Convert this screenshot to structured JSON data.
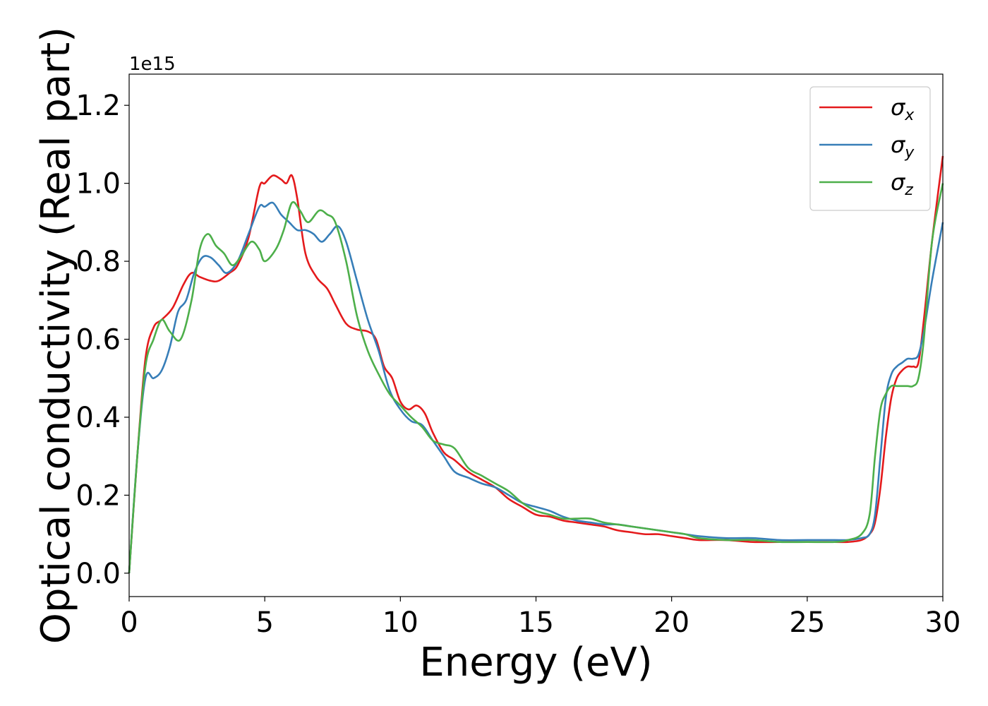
{
  "chart_data": {
    "type": "line",
    "xlabel": "Energy (eV)",
    "ylabel": "Optical conductivity (Real part)",
    "y_offset_label": "1e15",
    "xlim": [
      0,
      30
    ],
    "ylim": [
      -0.06,
      1.28
    ],
    "x_ticks": [
      0,
      5,
      10,
      15,
      20,
      25,
      30
    ],
    "x_tick_labels": [
      "0",
      "5",
      "10",
      "15",
      "20",
      "25",
      "30"
    ],
    "y_ticks": [
      0.0,
      0.2,
      0.4,
      0.6,
      0.8,
      1.0,
      1.2
    ],
    "y_tick_labels": [
      "0.0",
      "0.2",
      "0.4",
      "0.6",
      "0.8",
      "1.0",
      "1.2"
    ],
    "grid": false,
    "legend_position": "top-right",
    "series": [
      {
        "name": "σx",
        "symbol": "σ",
        "subscript": "x",
        "color": "#e41a1c",
        "x": [
          0,
          0.3,
          0.6,
          0.9,
          1.2,
          1.6,
          2.0,
          2.3,
          2.6,
          3.0,
          3.3,
          3.7,
          4.0,
          4.4,
          4.8,
          5.0,
          5.3,
          5.6,
          5.8,
          6.0,
          6.2,
          6.5,
          6.9,
          7.3,
          7.6,
          8.0,
          8.4,
          8.8,
          9.1,
          9.4,
          9.7,
          10.0,
          10.3,
          10.6,
          10.9,
          11.2,
          11.6,
          12.0,
          12.5,
          13.0,
          13.5,
          14.0,
          14.5,
          15.0,
          15.5,
          16.0,
          16.5,
          17.0,
          17.5,
          18.0,
          18.5,
          19.0,
          19.5,
          20.0,
          20.5,
          21.0,
          22.0,
          23.0,
          24.0,
          25.0,
          26.0,
          26.5,
          27.0,
          27.3,
          27.5,
          27.7,
          27.9,
          28.1,
          28.3,
          28.5,
          28.7,
          28.9,
          29.1,
          29.3,
          29.6,
          30.0
        ],
        "y": [
          0.0,
          0.3,
          0.55,
          0.63,
          0.65,
          0.68,
          0.74,
          0.77,
          0.76,
          0.75,
          0.75,
          0.77,
          0.79,
          0.86,
          0.99,
          1.0,
          1.02,
          1.01,
          1.0,
          1.02,
          0.96,
          0.82,
          0.76,
          0.73,
          0.69,
          0.64,
          0.625,
          0.62,
          0.6,
          0.53,
          0.5,
          0.44,
          0.42,
          0.43,
          0.41,
          0.36,
          0.31,
          0.29,
          0.26,
          0.24,
          0.22,
          0.19,
          0.17,
          0.15,
          0.145,
          0.135,
          0.13,
          0.125,
          0.12,
          0.11,
          0.105,
          0.1,
          0.1,
          0.095,
          0.09,
          0.085,
          0.085,
          0.08,
          0.08,
          0.08,
          0.08,
          0.08,
          0.085,
          0.1,
          0.13,
          0.22,
          0.35,
          0.45,
          0.5,
          0.52,
          0.53,
          0.53,
          0.54,
          0.65,
          0.85,
          1.07
        ]
      },
      {
        "name": "σy",
        "symbol": "σ",
        "subscript": "y",
        "color": "#377eb8",
        "x": [
          0,
          0.3,
          0.6,
          0.9,
          1.2,
          1.5,
          1.8,
          2.1,
          2.4,
          2.7,
          3.0,
          3.3,
          3.6,
          4.0,
          4.4,
          4.8,
          5.0,
          5.3,
          5.6,
          5.9,
          6.2,
          6.5,
          6.8,
          7.1,
          7.4,
          7.7,
          8.0,
          8.4,
          8.8,
          9.2,
          9.6,
          10.0,
          10.4,
          10.8,
          11.2,
          11.6,
          12.0,
          12.5,
          13.0,
          13.5,
          14.0,
          14.5,
          15.0,
          15.5,
          16.0,
          16.5,
          17.0,
          17.5,
          18.0,
          18.5,
          19.0,
          19.5,
          20.0,
          20.5,
          21.0,
          22.0,
          23.0,
          24.0,
          25.0,
          26.0,
          26.5,
          27.0,
          27.3,
          27.5,
          27.7,
          27.9,
          28.1,
          28.3,
          28.5,
          28.7,
          28.9,
          29.1,
          29.3,
          29.6,
          30.0
        ],
        "y": [
          0.0,
          0.3,
          0.5,
          0.5,
          0.52,
          0.58,
          0.67,
          0.7,
          0.77,
          0.81,
          0.81,
          0.79,
          0.77,
          0.8,
          0.87,
          0.94,
          0.94,
          0.95,
          0.92,
          0.9,
          0.88,
          0.88,
          0.87,
          0.85,
          0.87,
          0.89,
          0.85,
          0.75,
          0.65,
          0.57,
          0.47,
          0.42,
          0.39,
          0.38,
          0.34,
          0.3,
          0.26,
          0.245,
          0.23,
          0.22,
          0.2,
          0.18,
          0.17,
          0.16,
          0.145,
          0.135,
          0.13,
          0.125,
          0.125,
          0.12,
          0.115,
          0.11,
          0.105,
          0.1,
          0.095,
          0.09,
          0.09,
          0.085,
          0.085,
          0.085,
          0.085,
          0.09,
          0.1,
          0.15,
          0.3,
          0.45,
          0.51,
          0.53,
          0.54,
          0.55,
          0.55,
          0.56,
          0.62,
          0.75,
          0.9
        ]
      },
      {
        "name": "σz",
        "symbol": "σ",
        "subscript": "z",
        "color": "#4daf4a",
        "x": [
          0,
          0.3,
          0.6,
          0.9,
          1.2,
          1.5,
          1.9,
          2.3,
          2.6,
          2.9,
          3.2,
          3.5,
          3.8,
          4.1,
          4.5,
          4.8,
          5.0,
          5.4,
          5.7,
          6.0,
          6.3,
          6.6,
          7.0,
          7.3,
          7.6,
          8.0,
          8.4,
          8.8,
          9.2,
          9.6,
          10.0,
          10.4,
          10.8,
          11.2,
          11.6,
          12.0,
          12.5,
          13.0,
          13.5,
          14.0,
          14.5,
          15.0,
          15.5,
          16.0,
          16.5,
          17.0,
          17.5,
          18.0,
          18.5,
          19.0,
          19.5,
          20.0,
          20.5,
          21.0,
          22.0,
          23.0,
          24.0,
          25.0,
          26.0,
          26.5,
          27.0,
          27.3,
          27.5,
          27.7,
          27.9,
          28.1,
          28.3,
          28.5,
          28.7,
          28.9,
          29.1,
          29.3,
          29.6,
          30.0
        ],
        "y": [
          0.0,
          0.3,
          0.53,
          0.6,
          0.65,
          0.62,
          0.6,
          0.7,
          0.83,
          0.87,
          0.84,
          0.82,
          0.79,
          0.81,
          0.85,
          0.83,
          0.8,
          0.83,
          0.88,
          0.95,
          0.93,
          0.9,
          0.93,
          0.92,
          0.9,
          0.8,
          0.66,
          0.57,
          0.51,
          0.46,
          0.43,
          0.4,
          0.375,
          0.34,
          0.33,
          0.32,
          0.27,
          0.25,
          0.23,
          0.21,
          0.18,
          0.16,
          0.15,
          0.14,
          0.14,
          0.14,
          0.13,
          0.125,
          0.12,
          0.115,
          0.11,
          0.105,
          0.1,
          0.09,
          0.085,
          0.085,
          0.08,
          0.08,
          0.08,
          0.085,
          0.1,
          0.15,
          0.3,
          0.42,
          0.46,
          0.48,
          0.48,
          0.48,
          0.48,
          0.48,
          0.5,
          0.6,
          0.85,
          1.0
        ]
      }
    ]
  }
}
